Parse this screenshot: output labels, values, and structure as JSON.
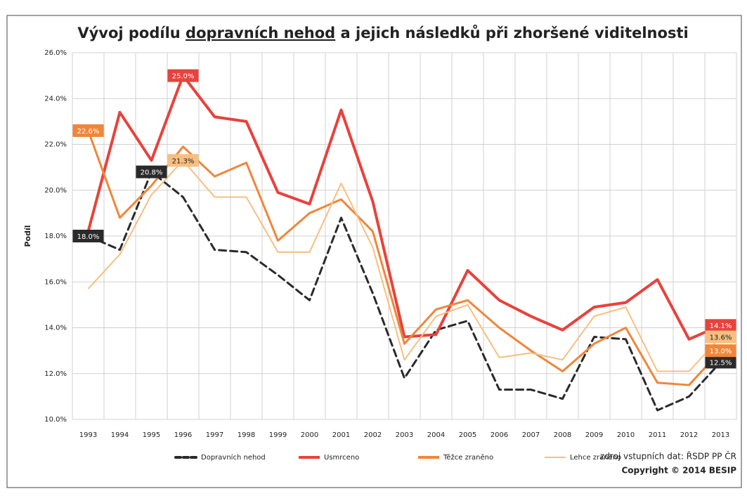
{
  "chart_data": {
    "type": "line",
    "title_parts": [
      "Vývoj podílu ",
      "dopravních nehod",
      " a jejich následků při zhoršené viditelnosti"
    ],
    "y_label": "Podíl",
    "source": "zdroj vstupních dat: ŘSDP PP ČR",
    "copyright": "Copyright © 2014 BESIP",
    "categories": [
      "1993",
      "1994",
      "1995",
      "1996",
      "1997",
      "1998",
      "1999",
      "2000",
      "2001",
      "2002",
      "2003",
      "2004",
      "2005",
      "2006",
      "2007",
      "2008",
      "2009",
      "2010",
      "2011",
      "2012",
      "2013"
    ],
    "ylim": [
      10,
      26
    ],
    "yticks": [
      {
        "value": 10,
        "label": "10.0%"
      },
      {
        "value": 12,
        "label": "12.0%"
      },
      {
        "value": 14,
        "label": "14.0%"
      },
      {
        "value": 16,
        "label": "16.0%"
      },
      {
        "value": 18,
        "label": "18.0%"
      },
      {
        "value": 20,
        "label": "20.0%"
      },
      {
        "value": 22,
        "label": "22.0%"
      },
      {
        "value": 24,
        "label": "24.0%"
      },
      {
        "value": 26,
        "label": "26.0%"
      }
    ],
    "grid": true,
    "legend": "bottom",
    "series": [
      {
        "name": "Dopravních nehod",
        "color": "#2a2a2a",
        "dashed": true,
        "values": [
          18.0,
          17.4,
          20.8,
          19.7,
          17.4,
          17.3,
          16.3,
          15.2,
          18.8,
          15.5,
          11.8,
          13.9,
          14.3,
          11.3,
          11.3,
          10.9,
          13.6,
          13.5,
          10.4,
          11.0,
          12.5
        ],
        "value_labels": [
          "18.0%",
          null,
          "20.8%",
          null,
          null,
          null,
          null,
          null,
          null,
          null,
          null,
          null,
          null,
          null,
          null,
          null,
          null,
          null,
          null,
          null,
          "12.5%"
        ]
      },
      {
        "name": "Usmrceno",
        "color": "#e8423c",
        "values": [
          18.2,
          23.4,
          21.3,
          25.0,
          23.2,
          23.0,
          19.9,
          19.4,
          23.5,
          19.5,
          13.6,
          13.7,
          16.5,
          15.2,
          14.5,
          13.9,
          14.9,
          15.1,
          16.1,
          13.5,
          14.1
        ],
        "value_labels": [
          null,
          null,
          null,
          "25.0%",
          null,
          null,
          null,
          null,
          null,
          null,
          null,
          null,
          null,
          null,
          null,
          null,
          null,
          null,
          null,
          null,
          "14.1%"
        ]
      },
      {
        "name": "Těžce zraněno",
        "color": "#f0863a",
        "values": [
          22.6,
          18.8,
          20.2,
          21.9,
          20.6,
          21.2,
          17.8,
          19.0,
          19.6,
          18.2,
          13.3,
          14.8,
          15.2,
          14.0,
          13.0,
          12.1,
          13.3,
          14.0,
          11.6,
          11.5,
          13.0
        ],
        "value_labels": [
          "22.6%",
          null,
          null,
          null,
          null,
          null,
          null,
          null,
          null,
          null,
          null,
          null,
          null,
          null,
          null,
          null,
          null,
          null,
          null,
          null,
          "13.0%"
        ]
      },
      {
        "name": "Lehce zraněno",
        "color": "#f7bf80",
        "values": [
          15.7,
          17.2,
          19.8,
          21.3,
          19.7,
          19.7,
          17.3,
          17.3,
          20.3,
          17.5,
          12.6,
          14.5,
          15.0,
          12.7,
          12.9,
          12.6,
          14.5,
          14.9,
          12.1,
          12.1,
          13.6
        ],
        "value_labels": [
          null,
          null,
          null,
          "21.3%",
          null,
          null,
          null,
          null,
          null,
          null,
          null,
          null,
          null,
          null,
          null,
          null,
          null,
          null,
          null,
          null,
          "13.6%"
        ]
      }
    ]
  }
}
